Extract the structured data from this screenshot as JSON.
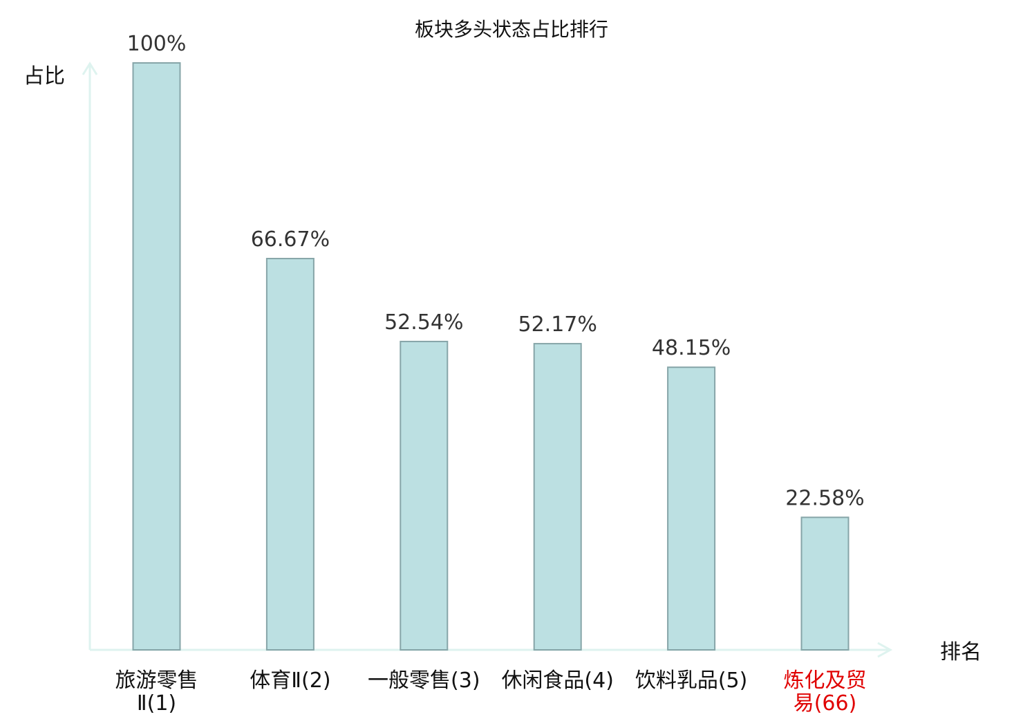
{
  "chart_data": {
    "type": "bar",
    "title": "板块多头状态占比排行",
    "ylabel": "占比",
    "xlabel": "排名",
    "categories": [
      [
        "旅游零售",
        "Ⅱ(1)"
      ],
      [
        "体育Ⅱ(2)"
      ],
      [
        "一般零售(3)"
      ],
      [
        "休闲食品(4)"
      ],
      [
        "饮料乳品(5)"
      ],
      [
        "炼化及贸",
        "易(66)"
      ]
    ],
    "values": [
      100,
      66.67,
      52.54,
      52.17,
      48.15,
      22.58
    ],
    "value_labels": [
      "100%",
      "66.67%",
      "52.54%",
      "52.17%",
      "48.15%",
      "22.58%"
    ],
    "highlight_index": 5,
    "ylim": [
      0,
      100
    ],
    "grid": false,
    "legend": "none"
  },
  "colors": {
    "bar_fill": "#bce0e2",
    "bar_stroke": "#86a5a8",
    "axis": "#def3ef",
    "highlight_text": "#e00000"
  }
}
